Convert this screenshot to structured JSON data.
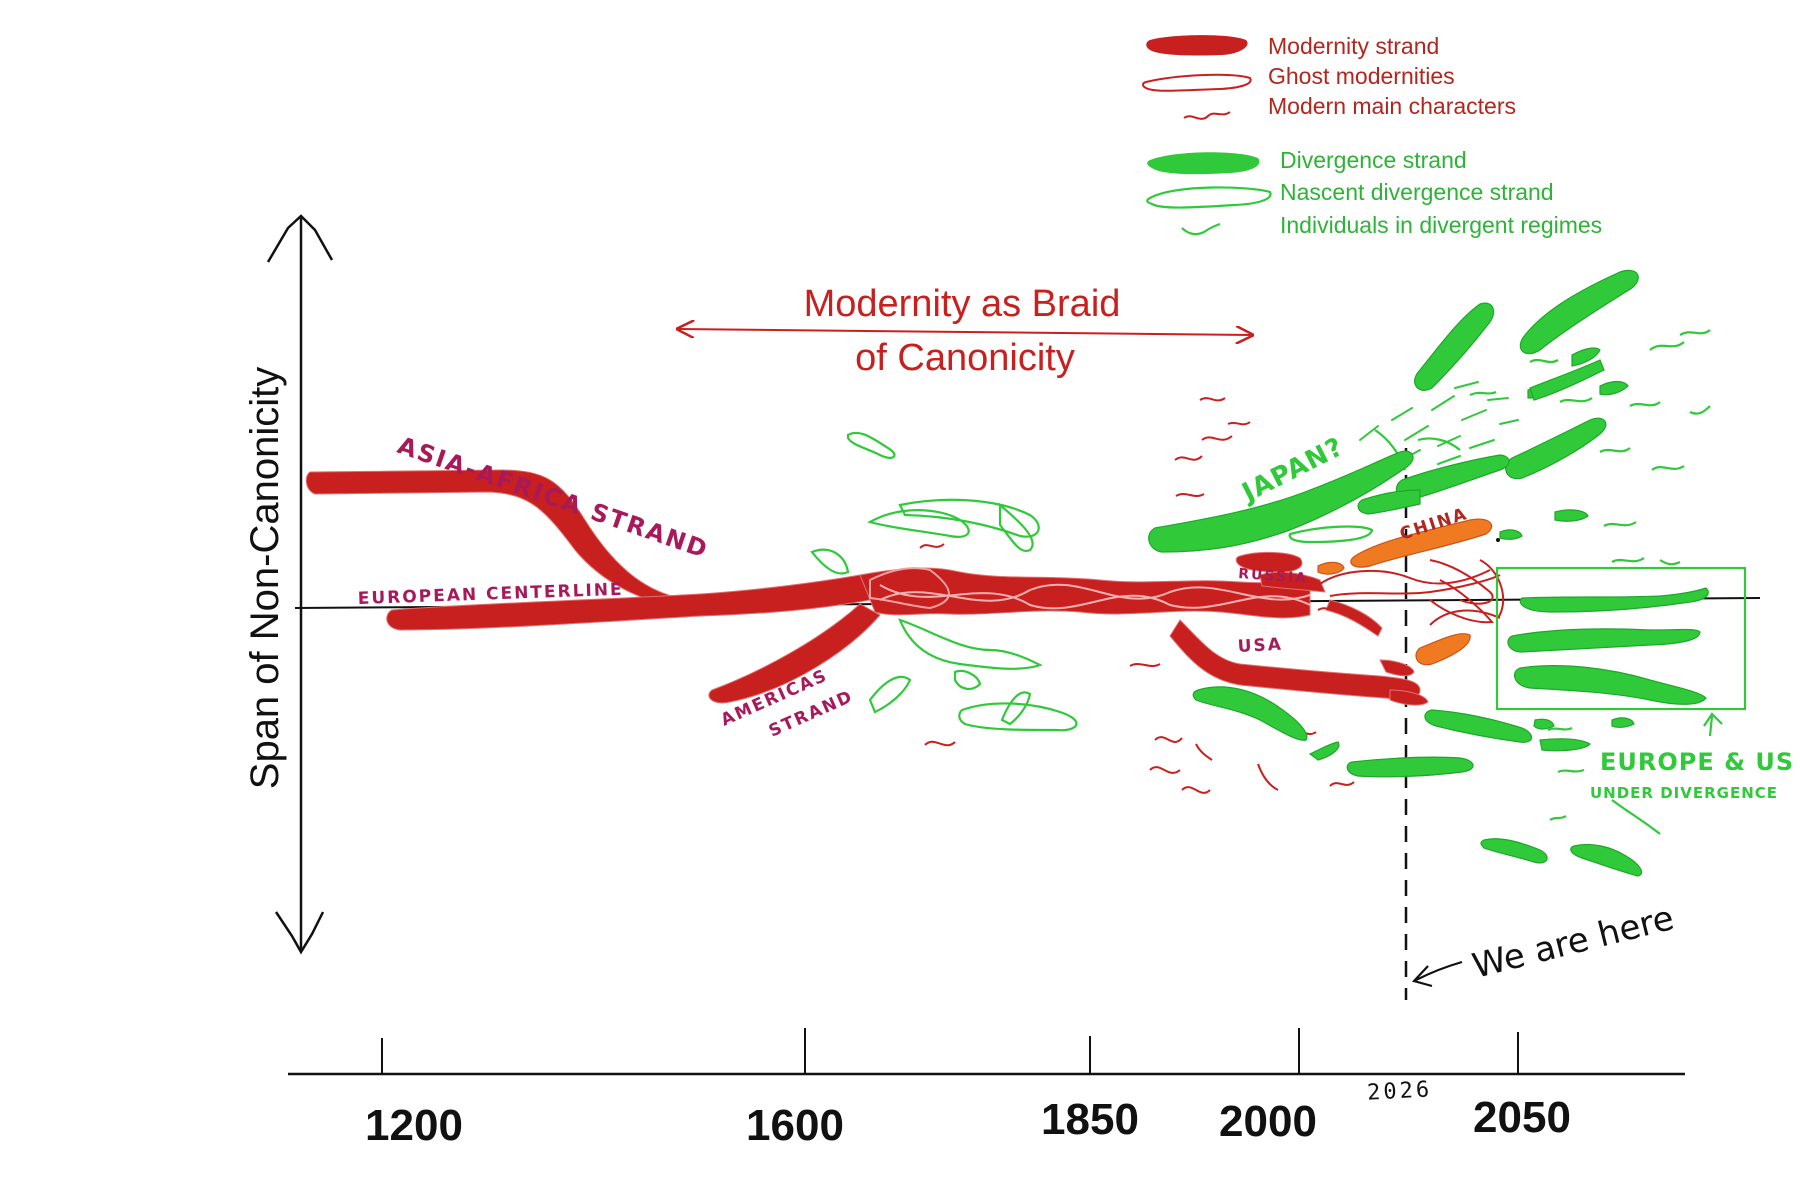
{
  "title_line1": "Modernity as Braid",
  "title_line2": "of Canonicity",
  "y_axis_label": "Span of Non-Canonicity",
  "legend": {
    "modernity": [
      {
        "style": "thick-solid",
        "label": "Modernity strand"
      },
      {
        "style": "thin-outline",
        "label": "Ghost modernities"
      },
      {
        "style": "squiggle",
        "label": "Modern main characters"
      }
    ],
    "divergence": [
      {
        "style": "thick-solid",
        "label": "Divergence strand"
      },
      {
        "style": "thin-outline",
        "label": "Nascent divergence strand"
      },
      {
        "style": "squiggle",
        "label": "Individuals in divergent regimes"
      }
    ]
  },
  "x_axis": {
    "ticks": [
      "1200",
      "1600",
      "1850",
      "2000",
      "2026",
      "2050"
    ]
  },
  "annotations": {
    "asia_africa": "ASIA-AFRICA STRAND",
    "european": "EUROPEAN CENTERLINE",
    "americas_1": "AMERICAS",
    "americas_2": "STRAND",
    "japan": "JAPAN?",
    "china": "CHINA",
    "russia": "RUSSIA",
    "usa": "USA",
    "europe_us_1": "EUROPE & US",
    "europe_us_2": "UNDER DIVERGENCE",
    "we_are_here": "We are here"
  },
  "colors": {
    "modernity": "#c8201e",
    "modernity_text": "#b3261e",
    "divergence": "#2fc93a",
    "divergence_text": "#2db336",
    "china": "#f07a22",
    "magenta": "#a8195a",
    "axis": "#111111"
  }
}
